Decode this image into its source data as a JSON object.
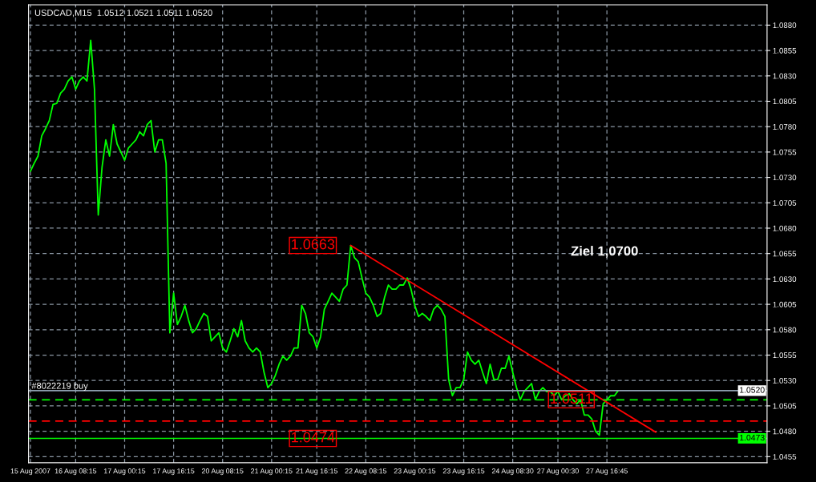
{
  "chart_data": {
    "type": "line",
    "title": "USDCAD,M15  1.0512 1.0521 1.0511 1.0520",
    "categories": [
      "15 Aug 2007",
      null,
      null,
      null,
      null,
      null,
      null,
      null,
      null,
      null,
      null,
      null,
      "16 Aug 08:15",
      null,
      null,
      null,
      null,
      null,
      null,
      null,
      null,
      null,
      null,
      null,
      null,
      "17 Aug 00:15",
      null,
      null,
      null,
      null,
      null,
      null,
      null,
      null,
      null,
      null,
      null,
      null,
      "17 Aug 16:15",
      null,
      null,
      null,
      null,
      null,
      null,
      null,
      null,
      null,
      null,
      null,
      null,
      "20 Aug 08:15",
      null,
      null,
      null,
      null,
      null,
      null,
      null,
      null,
      null,
      null,
      null,
      null,
      "21 Aug 00:15",
      null,
      null,
      null,
      null,
      null,
      null,
      null,
      null,
      null,
      null,
      null,
      "21 Aug 16:15",
      null,
      null,
      null,
      null,
      null,
      null,
      null,
      null,
      null,
      null,
      null,
      null,
      "22 Aug 08:15",
      null,
      null,
      null,
      null,
      null,
      null,
      null,
      null,
      null,
      null,
      null,
      null,
      "23 Aug 00:15",
      null,
      null,
      null,
      null,
      null,
      null,
      null,
      null,
      null,
      null,
      null,
      null,
      "23 Aug 16:15",
      null,
      null,
      null,
      null,
      null,
      null,
      null,
      null,
      null,
      null,
      null,
      null,
      "24 Aug 08:30",
      null,
      null,
      null,
      null,
      null,
      null,
      null,
      null,
      null,
      null,
      null,
      "27 Aug 00:30",
      null,
      null,
      null,
      null,
      null,
      null,
      null,
      null,
      null,
      null,
      null,
      null,
      "27 Aug 16:45",
      null,
      null,
      null,
      null,
      null,
      null,
      null,
      null,
      null,
      null,
      null,
      null,
      null,
      null,
      null,
      null,
      null,
      null,
      null,
      null,
      null,
      null,
      null,
      null,
      null,
      null,
      null,
      null,
      null,
      null,
      null,
      null,
      null,
      null,
      null,
      null,
      null,
      null,
      null,
      null,
      null,
      null
    ],
    "ylim": [
      1.0449,
      1.09
    ],
    "yticks": [
      {
        "value": 1.088,
        "label": "1.0880"
      },
      {
        "value": 1.0855,
        "label": "1.0855"
      },
      {
        "value": 1.083,
        "label": "1.0830"
      },
      {
        "value": 1.0805,
        "label": "1.0805"
      },
      {
        "value": 1.078,
        "label": "1.0780"
      },
      {
        "value": 1.0755,
        "label": "1.0755"
      },
      {
        "value": 1.073,
        "label": "1.0730"
      },
      {
        "value": 1.0705,
        "label": "1.0705"
      },
      {
        "value": 1.068,
        "label": "1.0680"
      },
      {
        "value": 1.0655,
        "label": "1.0655"
      },
      {
        "value": 1.063,
        "label": "1.0630"
      },
      {
        "value": 1.0605,
        "label": "1.0605"
      },
      {
        "value": 1.058,
        "label": "1.0580"
      },
      {
        "value": 1.0555,
        "label": "1.0555"
      },
      {
        "value": 1.053,
        "label": "1.0530"
      },
      {
        "value": 1.0505,
        "label": "1.0505"
      },
      {
        "value": 1.048,
        "label": "1.0480"
      },
      {
        "value": 1.0455,
        "label": "1.0455"
      }
    ],
    "grid": true,
    "line_style": "solid",
    "series": [
      {
        "color": "#00ff00",
        "values": [
          1.0736,
          1.0744,
          1.0751,
          1.0771,
          1.0778,
          1.0786,
          1.0802,
          1.0803,
          1.0813,
          1.0817,
          1.0825,
          1.0829,
          1.0817,
          1.0825,
          1.0829,
          1.0825,
          1.0865,
          1.0817,
          1.0693,
          1.074,
          1.0767,
          1.0751,
          1.0782,
          1.0763,
          1.0755,
          1.0747,
          1.0759,
          1.0763,
          1.0767,
          1.0775,
          1.0771,
          1.0782,
          1.0786,
          1.0755,
          1.0767,
          1.0767,
          1.0744,
          1.0577,
          1.0616,
          1.0585,
          1.0593,
          1.0604,
          1.0589,
          1.0577,
          1.0581,
          1.0589,
          1.0596,
          1.0593,
          1.0569,
          1.0573,
          1.0577,
          1.0562,
          1.0558,
          1.0569,
          1.0581,
          1.0573,
          1.0589,
          1.0569,
          1.0562,
          1.0558,
          1.0562,
          1.0558,
          1.0538,
          1.0523,
          1.0527,
          1.0535,
          1.0546,
          1.0554,
          1.055,
          1.0554,
          1.0562,
          1.0562,
          1.0604,
          1.0596,
          1.0577,
          1.0573,
          1.0562,
          1.0573,
          1.06,
          1.0608,
          1.0616,
          1.0612,
          1.0608,
          1.062,
          1.0624,
          1.0663,
          1.0651,
          1.0647,
          1.0631,
          1.0616,
          1.0612,
          1.0604,
          1.0593,
          1.0596,
          1.0612,
          1.0624,
          1.062,
          1.062,
          1.0624,
          1.0624,
          1.0631,
          1.062,
          1.0604,
          1.0593,
          1.0596,
          1.0593,
          1.0589,
          1.06,
          1.0604,
          1.06,
          1.0593,
          1.0531,
          1.0515,
          1.0523,
          1.0523,
          1.0531,
          1.0558,
          1.055,
          1.0546,
          1.055,
          1.0538,
          1.0527,
          1.0546,
          1.0531,
          1.0531,
          1.0542,
          1.0542,
          1.0554,
          1.0538,
          1.0523,
          1.0511,
          1.0519,
          1.0523,
          1.0527,
          1.0511,
          1.0519,
          1.0523,
          1.0519,
          1.0519,
          1.0515,
          1.0519,
          1.0511,
          1.0515,
          1.0517,
          1.0511,
          1.0507,
          1.0511,
          1.0496,
          1.0496,
          1.0492,
          1.048,
          1.0476,
          1.0507,
          1.0511,
          1.0515,
          1.0515,
          1.052,
          null,
          null,
          null,
          null,
          null,
          null,
          null,
          null,
          null,
          null,
          null,
          null,
          null,
          null,
          null,
          null,
          null,
          null,
          null,
          null,
          null,
          null,
          null,
          null,
          null,
          null,
          null,
          null,
          null,
          null,
          null,
          null,
          null,
          null,
          null,
          null,
          null,
          null,
          null
        ]
      },
      {
        "type": "line",
        "color": "#ff0000",
        "values": [
          null,
          null,
          null,
          null,
          null,
          null,
          null,
          null,
          null,
          null,
          null,
          null,
          null,
          null,
          null,
          null,
          null,
          null,
          null,
          null,
          null,
          null,
          null,
          null,
          null,
          null,
          null,
          null,
          null,
          null,
          null,
          null,
          null,
          null,
          null,
          null,
          null,
          null,
          null,
          null,
          null,
          null,
          null,
          null,
          null,
          null,
          null,
          null,
          null,
          null,
          null,
          null,
          null,
          null,
          null,
          null,
          null,
          null,
          null,
          null,
          null,
          null,
          null,
          null,
          null,
          null,
          null,
          null,
          null,
          null,
          null,
          null,
          null,
          null,
          null,
          null,
          null,
          null,
          null,
          null,
          null,
          null,
          null,
          null,
          null,
          1.0663,
          null,
          null,
          null,
          null,
          null,
          null,
          null,
          null,
          null,
          null,
          null,
          null,
          null,
          null,
          null,
          null,
          null,
          null,
          null,
          null,
          null,
          null,
          null,
          null,
          null,
          null,
          null,
          null,
          null,
          null,
          null,
          null,
          null,
          null,
          null,
          null,
          null,
          null,
          null,
          null,
          null,
          null,
          null,
          null,
          null,
          null,
          null,
          null,
          null,
          null,
          null,
          null,
          null,
          null,
          null,
          null,
          null,
          null,
          null,
          null,
          null,
          null,
          null,
          null,
          null,
          null,
          null,
          null,
          null,
          null,
          null,
          null,
          null,
          null,
          null,
          null,
          null,
          null,
          null,
          null,
          1.0479,
          null,
          null,
          null,
          null,
          null,
          null,
          null,
          null,
          null,
          null,
          null,
          null,
          null,
          null,
          null,
          null,
          null,
          null,
          null,
          null,
          null,
          null,
          null,
          null,
          null,
          null,
          null,
          null,
          null
        ]
      }
    ],
    "ref_lines": [
      {
        "axis": "y",
        "value": 1.052,
        "label": "#8022219 buy",
        "color": "#8fa0b0",
        "line_style": "solid"
      },
      {
        "axis": "y",
        "value": 1.0511,
        "color": "#00ff00",
        "line_style": "dashed"
      },
      {
        "axis": "y",
        "value": 1.049,
        "color": "#ff0000",
        "line_style": "dashed"
      },
      {
        "axis": "y",
        "value": 1.0473,
        "color": "#00ff00",
        "line_style": "solid"
      }
    ],
    "annotations": [
      {
        "text": "1.0520",
        "y": 1.052
      },
      {
        "text": "1.0473",
        "y": 1.0473
      },
      "1.0663",
      "1.0474",
      {
        "text": "1.0511",
        "y": 1.0511
      },
      "Ziel 1,0700"
    ]
  }
}
